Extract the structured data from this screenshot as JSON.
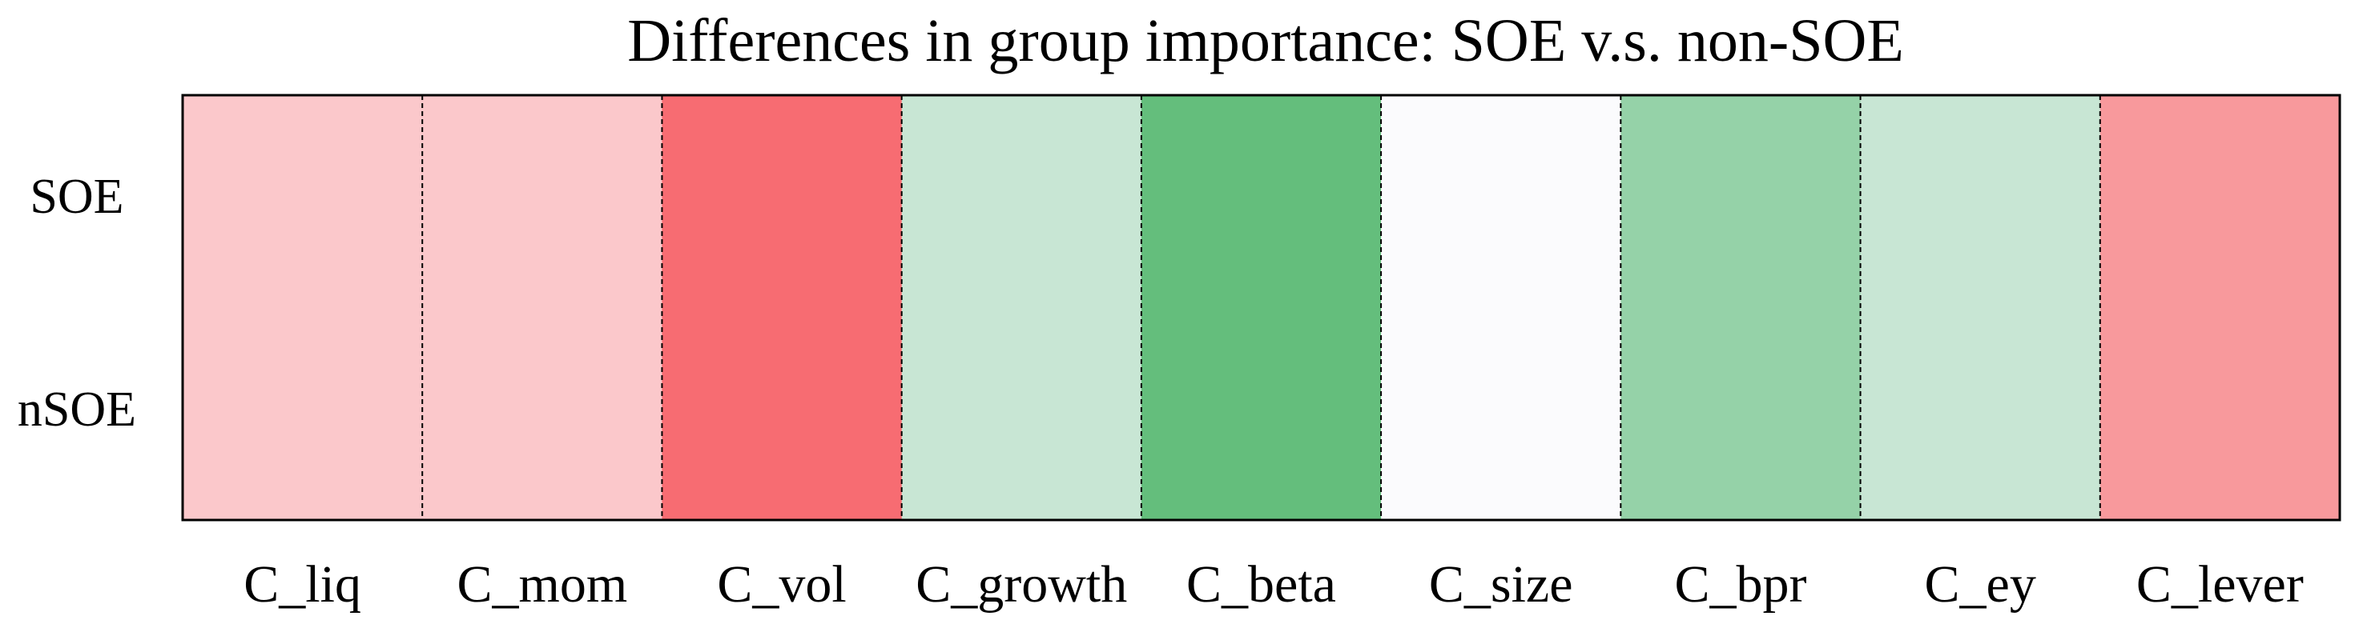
{
  "chart_data": {
    "type": "heatmap",
    "title": "Differences in group importance: SOE  v.s. non-SOE",
    "xlabel": "",
    "ylabel": "",
    "rows": [
      "SOE",
      "nSOE"
    ],
    "categories": [
      "C_liq",
      "C_mom",
      "C_vol",
      "C_growth",
      "C_beta",
      "C_size",
      "C_bpr",
      "C_ey",
      "C_lever"
    ],
    "values": [
      -0.3,
      -0.3,
      -0.9,
      0.3,
      0.9,
      0.0,
      0.6,
      0.3,
      -0.6
    ],
    "value_range": [
      -1,
      1
    ],
    "colors": {
      "-0.9": "#f76c72",
      "-0.6": "#f8999c",
      "-0.3": "#fbc8cb",
      "0.0": "#fbfbfd",
      "0.3": "#c8e6d4",
      "0.6": "#95d2a8",
      "0.9": "#64be7c"
    },
    "grid": false,
    "separator_style": "dashed"
  }
}
